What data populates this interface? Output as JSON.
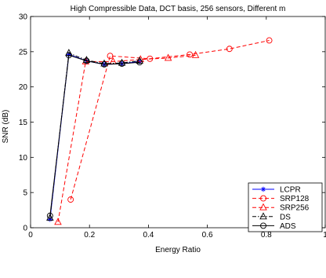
{
  "chart_data": {
    "type": "line",
    "title": "High Compressible Data, DCT basis, 256 sensors, Different m",
    "xlabel": "Energy Ratio",
    "ylabel": "SNR (dB)",
    "xlim": [
      0,
      1
    ],
    "ylim": [
      0,
      30
    ],
    "xticks": [
      0,
      0.2,
      0.4,
      0.6,
      0.8,
      1
    ],
    "xtick_labels": [
      "0",
      "0.2",
      "0.4",
      "0.6",
      "0.8",
      "1"
    ],
    "yticks": [
      0,
      5,
      10,
      15,
      20,
      25,
      30
    ],
    "ytick_labels": [
      "0",
      "5",
      "10",
      "15",
      "20",
      "25",
      "30"
    ],
    "grid": false,
    "legend_position": "bottom-right",
    "series": [
      {
        "name": "LCPR",
        "color": "#0000ff",
        "dash": "solid",
        "marker": "asterisk",
        "x": [
          0.066,
          0.13,
          0.19,
          0.25,
          0.31,
          0.37
        ],
        "y": [
          1.2,
          24.6,
          23.7,
          23.2,
          23.3,
          23.6
        ]
      },
      {
        "name": "SRP128",
        "color": "#ff0000",
        "dash": "dashed",
        "marker": "circle",
        "x": [
          0.136,
          0.27,
          0.405,
          0.54,
          0.675,
          0.81
        ],
        "y": [
          4.0,
          24.4,
          24.0,
          24.6,
          25.4,
          26.6
        ]
      },
      {
        "name": "SRP256",
        "color": "#ff0000",
        "dash": "dashed",
        "marker": "triangle",
        "x": [
          0.093,
          0.187,
          0.28,
          0.373,
          0.467,
          0.56
        ],
        "y": [
          0.8,
          23.6,
          23.6,
          23.9,
          24.1,
          24.5
        ]
      },
      {
        "name": "DS",
        "color": "#000000",
        "dash": "dashdot",
        "marker": "triangle",
        "x": [
          0.066,
          0.13,
          0.19,
          0.25,
          0.31,
          0.37
        ],
        "y": [
          1.4,
          24.8,
          23.8,
          23.3,
          23.4,
          23.7
        ]
      },
      {
        "name": "ADS",
        "color": "#000000",
        "dash": "solid",
        "marker": "circle",
        "x": [
          0.066,
          0.13,
          0.19,
          0.25,
          0.31,
          0.37
        ],
        "y": [
          1.7,
          24.5,
          23.7,
          23.2,
          23.3,
          23.5
        ]
      }
    ]
  }
}
